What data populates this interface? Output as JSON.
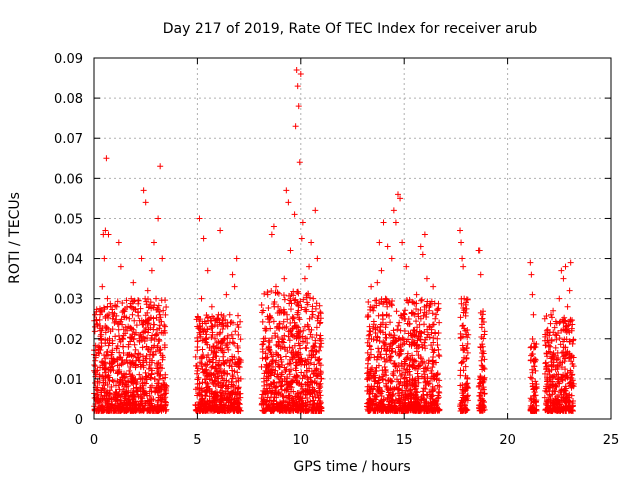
{
  "chart_data": {
    "type": "scatter",
    "title": "Day 217 of 2019, Rate Of TEC Index for receiver arub",
    "xlabel": "GPS time / hours",
    "ylabel": "ROTI / TECUs",
    "xlim": [
      0,
      25
    ],
    "ylim": [
      0,
      0.09
    ],
    "x_ticks": [
      0,
      5,
      10,
      15,
      20,
      25
    ],
    "y_ticks": [
      0,
      0.01,
      0.02,
      0.03,
      0.04,
      0.05,
      0.06,
      0.07,
      0.08,
      0.09
    ],
    "x_tick_labels": [
      "0",
      "5",
      "10",
      "15",
      "20",
      "25"
    ],
    "y_tick_labels": [
      "0",
      "0.01",
      "0.02",
      "0.03",
      "0.04",
      "0.05",
      "0.06",
      "0.07",
      "0.08",
      "0.09"
    ],
    "grid": true,
    "marker": "+",
    "color": "#ff0000",
    "series": [
      {
        "points": [
          [
            0.05,
            0.026
          ],
          [
            0.1,
            0.012
          ],
          [
            0.15,
            0.005
          ],
          [
            0.2,
            0.018
          ],
          [
            0.25,
            0.009
          ],
          [
            0.3,
            0.022
          ],
          [
            0.35,
            0.007
          ],
          [
            0.4,
            0.033
          ],
          [
            0.45,
            0.046
          ],
          [
            0.5,
            0.04
          ],
          [
            0.55,
            0.047
          ],
          [
            0.6,
            0.065
          ],
          [
            0.65,
            0.03
          ],
          [
            0.7,
            0.046
          ],
          [
            0.75,
            0.02
          ],
          [
            0.8,
            0.012
          ],
          [
            0.85,
            0.008
          ],
          [
            0.9,
            0.025
          ],
          [
            0.95,
            0.015
          ],
          [
            1.0,
            0.006
          ],
          [
            1.1,
            0.028
          ],
          [
            1.2,
            0.044
          ],
          [
            1.3,
            0.038
          ],
          [
            1.4,
            0.018
          ],
          [
            1.5,
            0.009
          ],
          [
            1.6,
            0.022
          ],
          [
            1.7,
            0.012
          ],
          [
            1.8,
            0.03
          ],
          [
            1.9,
            0.034
          ],
          [
            2.0,
            0.01
          ],
          [
            2.1,
            0.007
          ],
          [
            2.2,
            0.02
          ],
          [
            2.3,
            0.04
          ],
          [
            2.4,
            0.057
          ],
          [
            2.5,
            0.054
          ],
          [
            2.6,
            0.032
          ],
          [
            2.7,
            0.015
          ],
          [
            2.8,
            0.037
          ],
          [
            2.9,
            0.044
          ],
          [
            3.0,
            0.03
          ],
          [
            3.1,
            0.05
          ],
          [
            3.2,
            0.063
          ],
          [
            3.3,
            0.04
          ],
          [
            3.4,
            0.022
          ],
          [
            3.5,
            0.008
          ],
          [
            5.0,
            0.012
          ],
          [
            5.1,
            0.05
          ],
          [
            5.2,
            0.03
          ],
          [
            5.3,
            0.045
          ],
          [
            5.4,
            0.02
          ],
          [
            5.5,
            0.037
          ],
          [
            5.6,
            0.01
          ],
          [
            5.7,
            0.028
          ],
          [
            5.8,
            0.018
          ],
          [
            5.9,
            0.006
          ],
          [
            6.0,
            0.025
          ],
          [
            6.1,
            0.047
          ],
          [
            6.2,
            0.019
          ],
          [
            6.3,
            0.012
          ],
          [
            6.4,
            0.031
          ],
          [
            6.5,
            0.008
          ],
          [
            6.6,
            0.024
          ],
          [
            6.7,
            0.036
          ],
          [
            6.8,
            0.033
          ],
          [
            6.9,
            0.04
          ],
          [
            7.0,
            0.015
          ],
          [
            7.1,
            0.01
          ],
          [
            8.2,
            0.02
          ],
          [
            8.3,
            0.012
          ],
          [
            8.4,
            0.031
          ],
          [
            8.5,
            0.025
          ],
          [
            8.6,
            0.046
          ],
          [
            8.7,
            0.048
          ],
          [
            8.8,
            0.033
          ],
          [
            8.9,
            0.028
          ],
          [
            9.0,
            0.01
          ],
          [
            9.1,
            0.018
          ],
          [
            9.2,
            0.035
          ],
          [
            9.3,
            0.057
          ],
          [
            9.4,
            0.054
          ],
          [
            9.5,
            0.042
          ],
          [
            9.6,
            0.025
          ],
          [
            9.7,
            0.051
          ],
          [
            9.75,
            0.073
          ],
          [
            9.8,
            0.087
          ],
          [
            9.85,
            0.083
          ],
          [
            9.9,
            0.078
          ],
          [
            9.95,
            0.064
          ],
          [
            10.0,
            0.086
          ],
          [
            10.05,
            0.045
          ],
          [
            10.1,
            0.049
          ],
          [
            10.2,
            0.035
          ],
          [
            10.3,
            0.02
          ],
          [
            10.4,
            0.038
          ],
          [
            10.5,
            0.044
          ],
          [
            10.6,
            0.03
          ],
          [
            10.7,
            0.052
          ],
          [
            10.8,
            0.04
          ],
          [
            10.9,
            0.015
          ],
          [
            11.0,
            0.01
          ],
          [
            13.3,
            0.02
          ],
          [
            13.4,
            0.033
          ],
          [
            13.5,
            0.027
          ],
          [
            13.6,
            0.012
          ],
          [
            13.7,
            0.034
          ],
          [
            13.8,
            0.044
          ],
          [
            13.9,
            0.037
          ],
          [
            14.0,
            0.049
          ],
          [
            14.1,
            0.03
          ],
          [
            14.2,
            0.043
          ],
          [
            14.3,
            0.018
          ],
          [
            14.4,
            0.04
          ],
          [
            14.5,
            0.052
          ],
          [
            14.6,
            0.049
          ],
          [
            14.7,
            0.056
          ],
          [
            14.8,
            0.055
          ],
          [
            14.9,
            0.044
          ],
          [
            15.0,
            0.025
          ],
          [
            15.1,
            0.038
          ],
          [
            15.2,
            0.029
          ],
          [
            15.3,
            0.015
          ],
          [
            15.4,
            0.01
          ],
          [
            15.5,
            0.022
          ],
          [
            15.6,
            0.031
          ],
          [
            15.7,
            0.018
          ],
          [
            15.8,
            0.043
          ],
          [
            15.9,
            0.041
          ],
          [
            16.0,
            0.046
          ],
          [
            16.1,
            0.035
          ],
          [
            16.2,
            0.027
          ],
          [
            16.3,
            0.012
          ],
          [
            16.4,
            0.033
          ],
          [
            16.5,
            0.025
          ],
          [
            16.6,
            0.02
          ],
          [
            16.7,
            0.008
          ],
          [
            17.7,
            0.047
          ],
          [
            17.75,
            0.044
          ],
          [
            17.8,
            0.04
          ],
          [
            17.85,
            0.038
          ],
          [
            17.9,
            0.03
          ],
          [
            17.95,
            0.022
          ],
          [
            18.0,
            0.015
          ],
          [
            18.05,
            0.01
          ],
          [
            18.6,
            0.042
          ],
          [
            18.65,
            0.042
          ],
          [
            18.7,
            0.036
          ],
          [
            18.75,
            0.025
          ],
          [
            18.8,
            0.018
          ],
          [
            18.85,
            0.01
          ],
          [
            21.1,
            0.039
          ],
          [
            21.15,
            0.036
          ],
          [
            21.2,
            0.031
          ],
          [
            21.25,
            0.026
          ],
          [
            21.3,
            0.018
          ],
          [
            21.35,
            0.012
          ],
          [
            21.4,
            0.008
          ],
          [
            21.8,
            0.025
          ],
          [
            21.9,
            0.022
          ],
          [
            22.0,
            0.018
          ],
          [
            22.1,
            0.026
          ],
          [
            22.2,
            0.027
          ],
          [
            22.3,
            0.021
          ],
          [
            22.4,
            0.013
          ],
          [
            22.5,
            0.03
          ],
          [
            22.6,
            0.037
          ],
          [
            22.7,
            0.035
          ],
          [
            22.8,
            0.038
          ],
          [
            22.9,
            0.028
          ],
          [
            23.0,
            0.032
          ],
          [
            23.05,
            0.039
          ],
          [
            23.1,
            0.022
          ]
        ]
      }
    ],
    "clusters": [
      {
        "x_start": 0.0,
        "x_end": 3.5,
        "y_max": 0.03
      },
      {
        "x_start": 4.9,
        "x_end": 7.1,
        "y_max": 0.026
      },
      {
        "x_start": 8.1,
        "x_end": 11.0,
        "y_max": 0.032
      },
      {
        "x_start": 13.2,
        "x_end": 16.7,
        "y_max": 0.03
      },
      {
        "x_start": 17.7,
        "x_end": 18.1,
        "y_max": 0.03
      },
      {
        "x_start": 18.6,
        "x_end": 18.9,
        "y_max": 0.028
      },
      {
        "x_start": 21.1,
        "x_end": 21.4,
        "y_max": 0.02
      },
      {
        "x_start": 21.8,
        "x_end": 23.2,
        "y_max": 0.026
      }
    ]
  }
}
